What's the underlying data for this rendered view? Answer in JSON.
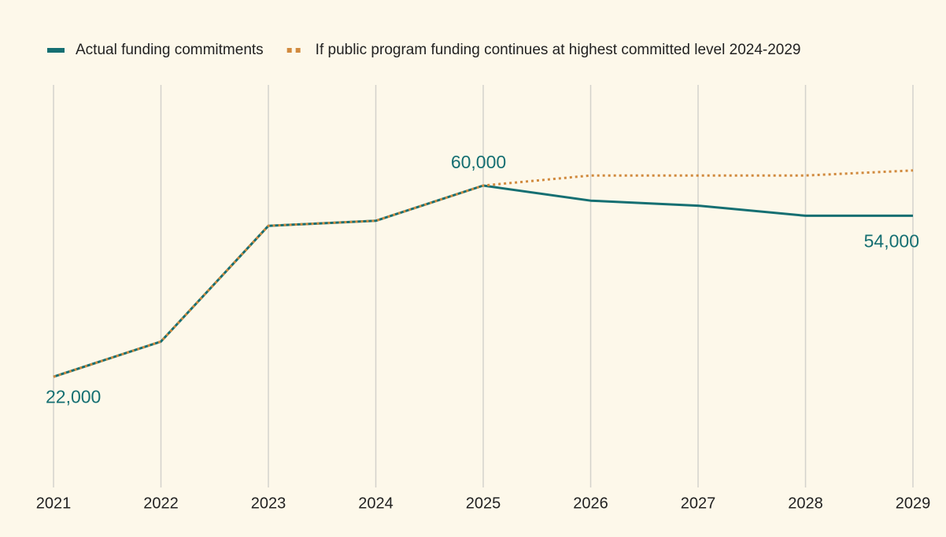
{
  "chart_data": {
    "type": "line",
    "categories": [
      "2021",
      "2022",
      "2023",
      "2024",
      "2025",
      "2026",
      "2027",
      "2028",
      "2029"
    ],
    "series": [
      {
        "name": "Actual funding commitments",
        "color": "#156f72",
        "style": "solid",
        "values": [
          22000,
          29000,
          52000,
          53000,
          60000,
          57000,
          56000,
          54000,
          54000
        ],
        "value_labels": [
          "22,000",
          null,
          null,
          null,
          "60,000",
          null,
          null,
          null,
          "54,000"
        ]
      },
      {
        "name": "If public program funding continues at highest committed level 2024-2029",
        "color": "#d18a3e",
        "style": "dotted",
        "values": [
          22000,
          29000,
          52000,
          53000,
          60000,
          62000,
          62000,
          62000,
          63000
        ]
      }
    ],
    "ylim": [
      0,
      80000
    ],
    "grid": true,
    "legend": "top"
  }
}
